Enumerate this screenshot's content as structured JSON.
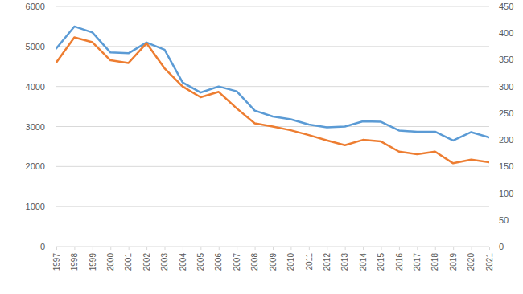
{
  "chart_data": {
    "type": "line",
    "categories": [
      "1997",
      "1998",
      "1999",
      "2000",
      "2001",
      "2002",
      "2003",
      "2004",
      "2005",
      "2006",
      "2007",
      "2008",
      "2009",
      "2010",
      "2011",
      "2012",
      "2013",
      "2014",
      "2015",
      "2016",
      "2017",
      "2018",
      "2019",
      "2020",
      "2021"
    ],
    "series": [
      {
        "color": "#5b9bd5",
        "values": [
          4950,
          5500,
          5350,
          4850,
          4830,
          5100,
          4920,
          4100,
          3850,
          4000,
          3880,
          3400,
          3250,
          3180,
          3050,
          2980,
          3000,
          3130,
          3120,
          2900,
          2870,
          2870,
          2650,
          2860,
          2730
        ]
      },
      {
        "color": "#ed7d31",
        "axis": "y2",
        "values": [
          345,
          392,
          383,
          349,
          344,
          381,
          334,
          300,
          280,
          290,
          259,
          231,
          225,
          218,
          209,
          199,
          190,
          200,
          197,
          178,
          173,
          178,
          156,
          163,
          158
        ]
      }
    ],
    "ylim": [
      0,
      6000
    ],
    "yticks": [
      0,
      1000,
      2000,
      3000,
      4000,
      5000,
      6000
    ],
    "y2lim": [
      0,
      450
    ],
    "y2ticks": [
      0,
      50,
      100,
      150,
      200,
      250,
      300,
      350,
      400,
      450
    ],
    "grid": true
  }
}
